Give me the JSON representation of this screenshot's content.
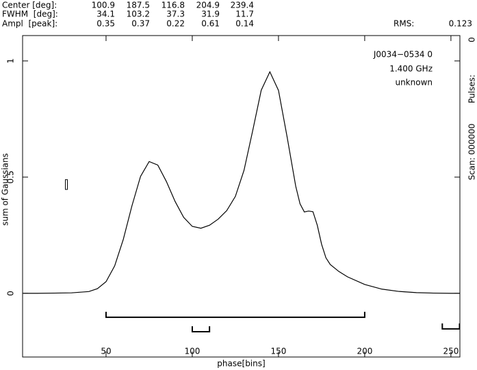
{
  "chart_data": {
    "type": "line",
    "header": {
      "rows": [
        {
          "label": "Center [deg]:",
          "values": [
            100.9,
            187.5,
            116.8,
            204.9,
            239.4
          ]
        },
        {
          "label": "FWHM  [deg]:",
          "values": [
            34.1,
            103.2,
            37.3,
            31.9,
            11.7
          ]
        },
        {
          "label": "Ampl  [peak]:",
          "values": [
            0.35,
            0.37,
            0.22,
            0.61,
            0.14
          ]
        }
      ],
      "rms_label": "RMS:",
      "rms": 0.123
    },
    "annotations": [
      "J0034−0534 0",
      "1.400 GHz",
      "unknown"
    ],
    "right_labels": [
      "Scan: 000000",
      "Pulses:",
      "0"
    ],
    "x_label": "phase[bins]",
    "y_label": "sum of Gaussians",
    "xlim": [
      1.6,
      255.2
    ],
    "ylim": [
      -0.274,
      1.109
    ],
    "xticks": [
      50,
      100,
      150,
      200,
      250
    ],
    "yticks": [
      0,
      0.5,
      1
    ],
    "x": [
      2,
      10,
      20,
      30,
      40,
      45,
      50,
      55,
      60,
      65,
      70,
      75,
      80,
      85,
      90,
      95,
      100,
      105,
      110,
      115,
      120,
      125,
      130,
      135,
      140,
      145,
      150,
      155,
      160,
      162.5,
      165,
      167.5,
      170,
      172.5,
      175,
      177.5,
      180,
      185,
      190,
      200,
      210,
      220,
      230,
      240,
      250,
      255
    ],
    "series": [
      {
        "color": "#000000",
        "values": [
          0,
          0,
          0.001,
          0.002,
          0.0075,
          0.02,
          0.05,
          0.118,
          0.232,
          0.376,
          0.503,
          0.567,
          0.552,
          0.481,
          0.396,
          0.327,
          0.288,
          0.28,
          0.293,
          0.319,
          0.356,
          0.417,
          0.529,
          0.698,
          0.874,
          0.953,
          0.873,
          0.673,
          0.461,
          0.385,
          0.35,
          0.354,
          0.351,
          0.293,
          0.211,
          0.153,
          0.124,
          0.094,
          0.071,
          0.038,
          0.018,
          0.008,
          0.003,
          0.001,
          0,
          0
        ]
      }
    ],
    "windows": [
      {
        "start": 50,
        "end": 200,
        "y": -0.103
      },
      {
        "start": 100,
        "end": 110,
        "y": -0.165
      },
      {
        "start": 245,
        "end": 255,
        "y": -0.153
      }
    ],
    "error_bar": {
      "x": 27,
      "y": 0.468,
      "error": 0.021
    }
  }
}
